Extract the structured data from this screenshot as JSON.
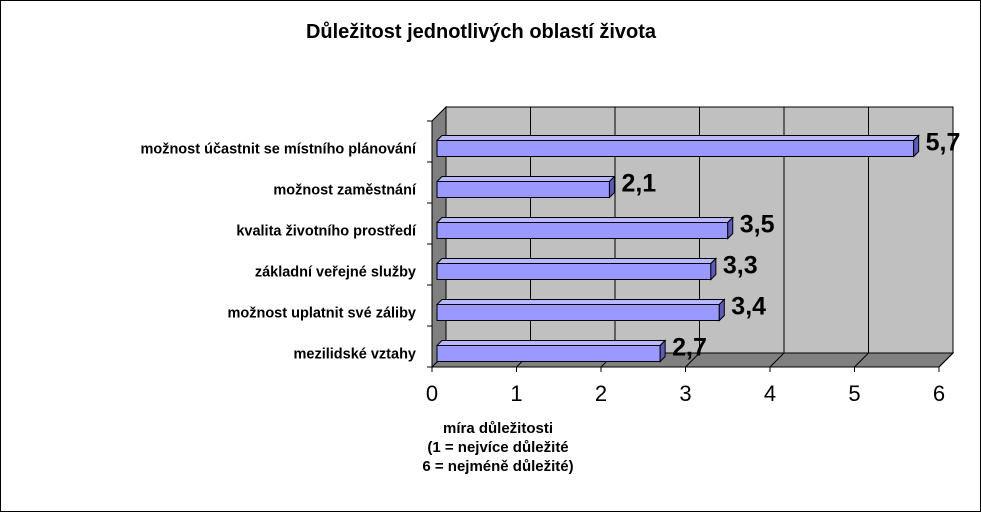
{
  "chart_data": {
    "type": "bar",
    "orientation": "horizontal",
    "title": "Důležitost jednotlivých oblastí života",
    "categories": [
      "možnost účastnit se místního plánování",
      "možnost zaměstnání",
      "kvalita životního prostředí",
      "základní veřejné služby",
      "možnost uplatnit své záliby",
      "mezilidské vztahy"
    ],
    "values": [
      5.7,
      2.1,
      3.5,
      3.3,
      3.4,
      2.7
    ],
    "data_labels": [
      "5,7",
      "2,1",
      "3,5",
      "3,3",
      "3,4",
      "2,7"
    ],
    "xlim": [
      0,
      6
    ],
    "xticks": [
      "0",
      "1",
      "2",
      "3",
      "4",
      "5",
      "6"
    ],
    "xlabel_lines": [
      "míra důležitosti",
      "(1 = nejvíce důležité",
      "6 = nejméně důležité)"
    ],
    "grid": true,
    "legend": "none",
    "colors": {
      "bar_front": "#9999FF",
      "bar_top": "#B8B8FF",
      "bar_side": "#5C5CB8",
      "plot_back": "#C0C0C0",
      "plot_floor": "#808080",
      "grid": "#000000"
    }
  }
}
